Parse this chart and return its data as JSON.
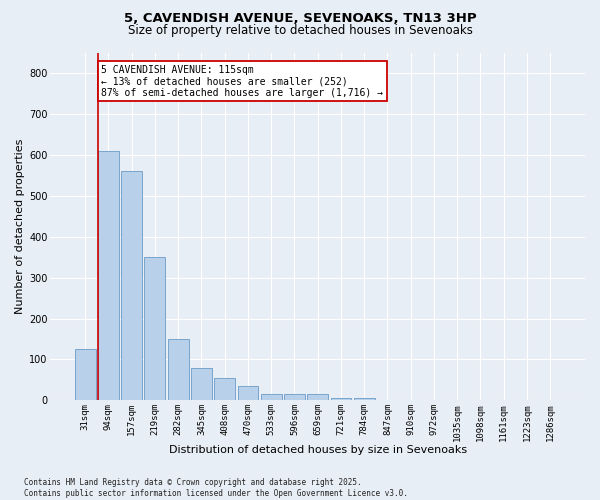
{
  "title_line1": "5, CAVENDISH AVENUE, SEVENOAKS, TN13 3HP",
  "title_line2": "Size of property relative to detached houses in Sevenoaks",
  "xlabel": "Distribution of detached houses by size in Sevenoaks",
  "ylabel": "Number of detached properties",
  "categories": [
    "31sqm",
    "94sqm",
    "157sqm",
    "219sqm",
    "282sqm",
    "345sqm",
    "408sqm",
    "470sqm",
    "533sqm",
    "596sqm",
    "659sqm",
    "721sqm",
    "784sqm",
    "847sqm",
    "910sqm",
    "972sqm",
    "1035sqm",
    "1098sqm",
    "1161sqm",
    "1223sqm",
    "1286sqm"
  ],
  "values": [
    125,
    610,
    560,
    350,
    150,
    80,
    55,
    35,
    15,
    15,
    15,
    5,
    5,
    0,
    0,
    0,
    0,
    0,
    0,
    0,
    0
  ],
  "bar_color": "#b8d0ea",
  "bar_edge_color": "#6a9cc8",
  "marker_line_color": "#cc0000",
  "annotation_text": "5 CAVENDISH AVENUE: 115sqm\n← 13% of detached houses are smaller (252)\n87% of semi-detached houses are larger (1,716) →",
  "annotation_box_color": "#ffffff",
  "annotation_border_color": "#cc0000",
  "ylim": [
    0,
    850
  ],
  "yticks": [
    0,
    100,
    200,
    300,
    400,
    500,
    600,
    700,
    800
  ],
  "background_color": "#e8eef5",
  "plot_bg_color": "#e8eef5",
  "footer_text": "Contains HM Land Registry data © Crown copyright and database right 2025.\nContains public sector information licensed under the Open Government Licence v3.0.",
  "title_fontsize": 9.5,
  "subtitle_fontsize": 8.5,
  "tick_fontsize": 6.5,
  "ylabel_fontsize": 8,
  "xlabel_fontsize": 8,
  "annotation_fontsize": 7,
  "footer_fontsize": 5.5
}
